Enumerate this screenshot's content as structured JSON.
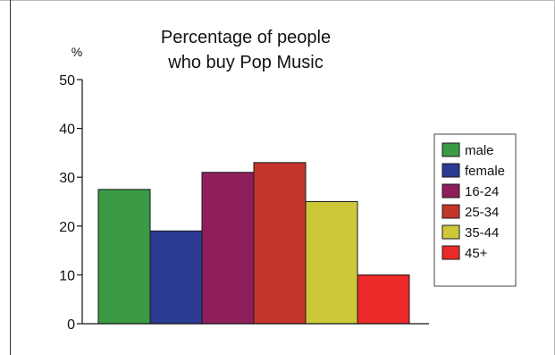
{
  "chart_data": {
    "type": "bar",
    "title": [
      "Percentage of people",
      "who buy Pop Music"
    ],
    "ylabel": "%",
    "xlabel": "",
    "ylim": [
      0,
      50
    ],
    "yticks": [
      0,
      10,
      20,
      30,
      40,
      50
    ],
    "grid": false,
    "legend_position": "right",
    "categories": [
      "male",
      "female",
      "16-24",
      "25-34",
      "35-44",
      "45+"
    ],
    "values": [
      27.5,
      19,
      31,
      33,
      25,
      10
    ],
    "colors": [
      "#3a9a46",
      "#2b3a92",
      "#8e1f5c",
      "#c5362a",
      "#cdc83a",
      "#ec2a2a"
    ]
  }
}
